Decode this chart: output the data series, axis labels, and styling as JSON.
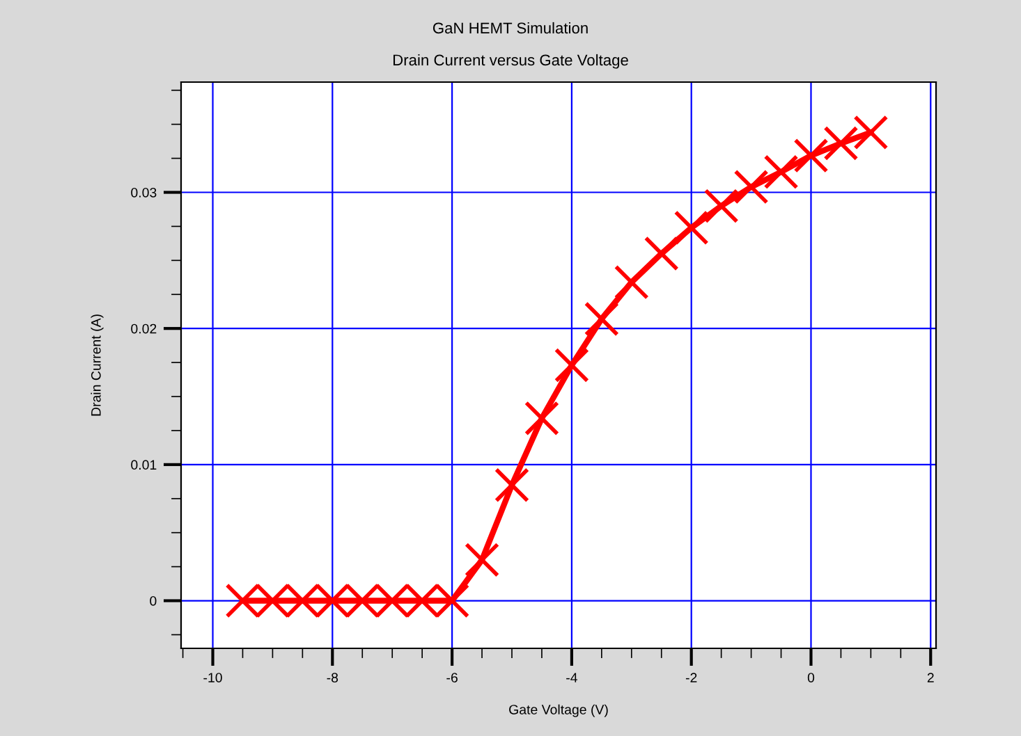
{
  "chart_data": {
    "type": "line",
    "title": "GaN HEMT Simulation",
    "subtitle": "Drain Current versus Gate Voltage",
    "xlabel": "Gate Voltage (V)",
    "ylabel": "Drain Current (A)",
    "x": [
      -9.5,
      -9.0,
      -8.5,
      -8.0,
      -7.5,
      -7.0,
      -6.5,
      -6.0,
      -5.5,
      -5.0,
      -4.5,
      -4.0,
      -3.5,
      -3.0,
      -2.5,
      -2.0,
      -1.5,
      -1.0,
      -0.5,
      0.0,
      0.5,
      1.0
    ],
    "series": [
      {
        "color": "#ff0000",
        "values": [
          0,
          0,
          0,
          0,
          0,
          0,
          0,
          0,
          0.003,
          0.0085,
          0.0134,
          0.0173,
          0.0207,
          0.0234,
          0.0255,
          0.0274,
          0.029,
          0.0304,
          0.0315,
          0.0327,
          0.0336,
          0.0344
        ]
      }
    ],
    "xlim": [
      -10.53,
      2.09
    ],
    "ylim": [
      -0.0035,
      0.0381
    ],
    "xticks": [
      -10,
      -8,
      -6,
      -4,
      -2,
      0,
      2
    ],
    "yticks": [
      0,
      0.01,
      0.02,
      0.03
    ],
    "grid": true,
    "marker": "cross",
    "line_style": "solid",
    "legend": false
  }
}
